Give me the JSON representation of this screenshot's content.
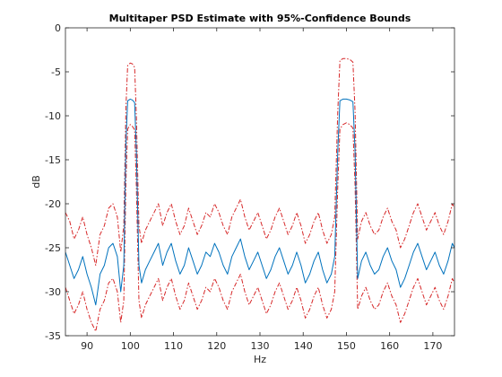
{
  "chart_data": {
    "type": "line",
    "title": "Multitaper PSD Estimate with 95%-Confidence Bounds",
    "xlabel": "Hz",
    "ylabel": "dB",
    "xlim": [
      85,
      175
    ],
    "ylim": [
      -35,
      0
    ],
    "xticks": [
      90,
      100,
      110,
      120,
      130,
      140,
      150,
      160,
      170
    ],
    "yticks": [
      0,
      -5,
      -10,
      -15,
      -20,
      -25,
      -30,
      -35
    ],
    "grid": false,
    "series": [
      {
        "role": "estimate",
        "color": "#0072BD",
        "style": "solid",
        "x": [
          85,
          86,
          87,
          88,
          89,
          90,
          91,
          92,
          93,
          94,
          95,
          96,
          97,
          97.8,
          98.5,
          99,
          99.4,
          100,
          100.5,
          101,
          101.4,
          102,
          102.6,
          103.5,
          104.5,
          105.5,
          106.5,
          107.5,
          108.5,
          109.5,
          110.5,
          111.5,
          112.5,
          113.5,
          114.5,
          115.5,
          116.5,
          117.5,
          118.5,
          119.5,
          120.5,
          121.5,
          122.5,
          123.5,
          124.5,
          125.5,
          126.5,
          127.5,
          128.5,
          129.5,
          130.5,
          131.5,
          132.5,
          133.5,
          134.5,
          135.5,
          136.5,
          137.5,
          138.5,
          139.5,
          140.5,
          141.5,
          142.5,
          143.5,
          144.5,
          145.5,
          146.5,
          147.3,
          148,
          148.5,
          149.2,
          150,
          150.8,
          151.5,
          152,
          152.6,
          153.5,
          154.5,
          155.5,
          156.5,
          157.5,
          158.5,
          159.5,
          160.5,
          161.5,
          162.5,
          163.5,
          164.5,
          165.5,
          166.5,
          167.5,
          168.5,
          169.5,
          170.5,
          171.5,
          172.5,
          173.5,
          174.5,
          175
        ],
        "y": [
          -25.5,
          -27,
          -28.5,
          -27.5,
          -26,
          -28,
          -29.5,
          -31.5,
          -28,
          -27,
          -25,
          -24.5,
          -26,
          -30,
          -27,
          -13,
          -8.3,
          -8.1,
          -8.2,
          -8.5,
          -14,
          -27,
          -29,
          -27.5,
          -26.5,
          -25.5,
          -24.5,
          -27,
          -25.5,
          -24.5,
          -26.5,
          -28,
          -27,
          -25,
          -26.5,
          -28,
          -27,
          -25.5,
          -26,
          -24.5,
          -25.5,
          -27,
          -28,
          -26,
          -25,
          -24,
          -26,
          -27.5,
          -26.5,
          -25.5,
          -27,
          -28.5,
          -27.5,
          -26,
          -25,
          -26.5,
          -28,
          -27,
          -25.5,
          -27,
          -29,
          -28,
          -26.5,
          -25.5,
          -27.5,
          -29,
          -28,
          -26,
          -14,
          -8.3,
          -8.1,
          -8.1,
          -8.2,
          -8.4,
          -14,
          -28.5,
          -26.5,
          -25.5,
          -27,
          -28,
          -27.5,
          -26,
          -25,
          -26.5,
          -27.5,
          -29.5,
          -28.5,
          -27,
          -25.5,
          -24.5,
          -26,
          -27.5,
          -26.5,
          -25.5,
          -27,
          -28,
          -26.5,
          -24.5,
          -25
        ]
      },
      {
        "role": "upper-bound",
        "color": "#D62728",
        "style": "dashdot",
        "x": [
          85,
          86,
          87,
          88,
          89,
          90,
          91,
          92,
          93,
          94,
          95,
          96,
          97,
          97.8,
          98.5,
          99,
          99.4,
          100,
          100.5,
          101,
          101.4,
          102,
          102.6,
          103.5,
          104.5,
          105.5,
          106.5,
          107.5,
          108.5,
          109.5,
          110.5,
          111.5,
          112.5,
          113.5,
          114.5,
          115.5,
          116.5,
          117.5,
          118.5,
          119.5,
          120.5,
          121.5,
          122.5,
          123.5,
          124.5,
          125.5,
          126.5,
          127.5,
          128.5,
          129.5,
          130.5,
          131.5,
          132.5,
          133.5,
          134.5,
          135.5,
          136.5,
          137.5,
          138.5,
          139.5,
          140.5,
          141.5,
          142.5,
          143.5,
          144.5,
          145.5,
          146.5,
          147.3,
          148,
          148.5,
          149.2,
          150,
          150.8,
          151.5,
          152,
          152.6,
          153.5,
          154.5,
          155.5,
          156.5,
          157.5,
          158.5,
          159.5,
          160.5,
          161.5,
          162.5,
          163.5,
          164.5,
          165.5,
          166.5,
          167.5,
          168.5,
          169.5,
          170.5,
          171.5,
          172.5,
          173.5,
          174.5,
          175
        ],
        "y": [
          -21,
          -22,
          -24,
          -23,
          -21.5,
          -23.5,
          -25,
          -27,
          -23.5,
          -22.5,
          -20.5,
          -20,
          -21.5,
          -25.5,
          -22.5,
          -9,
          -4.3,
          -4,
          -4.1,
          -4.5,
          -10,
          -22.5,
          -24.5,
          -23,
          -22,
          -21,
          -20,
          -22.5,
          -21,
          -20,
          -22,
          -23.5,
          -22.5,
          -20.5,
          -22,
          -23.5,
          -22.5,
          -21,
          -21.5,
          -20,
          -21,
          -22.5,
          -23.5,
          -21.5,
          -20.5,
          -19.5,
          -21.5,
          -23,
          -22,
          -21,
          -22.5,
          -24,
          -23,
          -21.5,
          -20.5,
          -22,
          -23.5,
          -22.5,
          -21,
          -22.5,
          -24.5,
          -23.5,
          -22,
          -21,
          -23,
          -24.5,
          -23.5,
          -21.5,
          -9.5,
          -3.7,
          -3.5,
          -3.5,
          -3.6,
          -3.9,
          -9.5,
          -24,
          -22,
          -21,
          -22.5,
          -23.5,
          -23,
          -21.5,
          -20.5,
          -22,
          -23,
          -25,
          -24,
          -22.5,
          -21,
          -20,
          -21.5,
          -23,
          -22,
          -21,
          -22.5,
          -23.5,
          -22,
          -20,
          -20.5
        ]
      },
      {
        "role": "lower-bound",
        "color": "#D62728",
        "style": "dashdot",
        "x": [
          85,
          86,
          87,
          88,
          89,
          90,
          91,
          92,
          93,
          94,
          95,
          96,
          97,
          97.8,
          98.5,
          99,
          99.4,
          100,
          100.5,
          101,
          101.4,
          102,
          102.6,
          103.5,
          104.5,
          105.5,
          106.5,
          107.5,
          108.5,
          109.5,
          110.5,
          111.5,
          112.5,
          113.5,
          114.5,
          115.5,
          116.5,
          117.5,
          118.5,
          119.5,
          120.5,
          121.5,
          122.5,
          123.5,
          124.5,
          125.5,
          126.5,
          127.5,
          128.5,
          129.5,
          130.5,
          131.5,
          132.5,
          133.5,
          134.5,
          135.5,
          136.5,
          137.5,
          138.5,
          139.5,
          140.5,
          141.5,
          142.5,
          143.5,
          144.5,
          145.5,
          146.5,
          147.3,
          148,
          148.5,
          149.2,
          150,
          150.8,
          151.5,
          152,
          152.6,
          153.5,
          154.5,
          155.5,
          156.5,
          157.5,
          158.5,
          159.5,
          160.5,
          161.5,
          162.5,
          163.5,
          164.5,
          165.5,
          166.5,
          167.5,
          168.5,
          169.5,
          170.5,
          171.5,
          172.5,
          173.5,
          174.5,
          175
        ],
        "y": [
          -29.5,
          -31,
          -32.5,
          -31.5,
          -30,
          -32,
          -33.5,
          -34.5,
          -32,
          -31,
          -29,
          -28.5,
          -30,
          -33.5,
          -31,
          -17.5,
          -11.5,
          -11,
          -11.2,
          -11.6,
          -18,
          -31,
          -33,
          -31.5,
          -30.5,
          -29.5,
          -28.5,
          -31,
          -29.5,
          -28.5,
          -30.5,
          -32,
          -31,
          -29,
          -30.5,
          -32,
          -31,
          -29.5,
          -30,
          -28.5,
          -29.5,
          -31,
          -32,
          -30,
          -29,
          -28,
          -30,
          -31.5,
          -30.5,
          -29.5,
          -31,
          -32.5,
          -31.5,
          -30,
          -29,
          -30.5,
          -32,
          -31,
          -29.5,
          -31,
          -33,
          -32,
          -30.5,
          -29.5,
          -31.5,
          -33,
          -32,
          -30,
          -18,
          -11.5,
          -11,
          -10.8,
          -11,
          -11.4,
          -18,
          -32,
          -30.5,
          -29.5,
          -31,
          -32,
          -31.5,
          -30,
          -29,
          -30.5,
          -31.5,
          -33.5,
          -32.5,
          -31,
          -29.5,
          -28.5,
          -30,
          -31.5,
          -30.5,
          -29.5,
          -31,
          -32,
          -30.5,
          -28.5,
          -29
        ]
      }
    ]
  }
}
